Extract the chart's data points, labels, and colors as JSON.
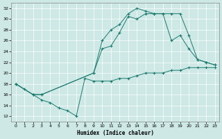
{
  "xlabel": "Humidex (Indice chaleur)",
  "bg_color": "#cde8e5",
  "grid_color": "#ffffff",
  "line_color": "#1a7a6e",
  "ylim": [
    11,
    33
  ],
  "xlim": [
    -0.5,
    23.5
  ],
  "line1_x": [
    0,
    1,
    2,
    3,
    4,
    5,
    6,
    7,
    8,
    9,
    10,
    11,
    12,
    13,
    14,
    15,
    16,
    17,
    18,
    19,
    20,
    21,
    22,
    23
  ],
  "line1_y": [
    18,
    17,
    16,
    15,
    14.5,
    13.5,
    13,
    12,
    19,
    18.5,
    18.5,
    18.5,
    19,
    19,
    19.5,
    20,
    20,
    20,
    20.5,
    20.5,
    21,
    21,
    21,
    21
  ],
  "line2_x": [
    0,
    2,
    3,
    9,
    10,
    11,
    12,
    13,
    14,
    15,
    16,
    17,
    18,
    19,
    20,
    21,
    22,
    23
  ],
  "line2_y": [
    18,
    16,
    16,
    20,
    24.5,
    25,
    27.5,
    30.5,
    30,
    31,
    31,
    31,
    26,
    27,
    24.5,
    22.5,
    22,
    21.5
  ],
  "line3_x": [
    0,
    2,
    3,
    9,
    10,
    11,
    12,
    13,
    14,
    15,
    16,
    17,
    18,
    19,
    20,
    21,
    22,
    23
  ],
  "line3_y": [
    18,
    16,
    16,
    20,
    26,
    28,
    29,
    31,
    32,
    31.5,
    31,
    31,
    31,
    31,
    27,
    22.5,
    22,
    21.5
  ]
}
